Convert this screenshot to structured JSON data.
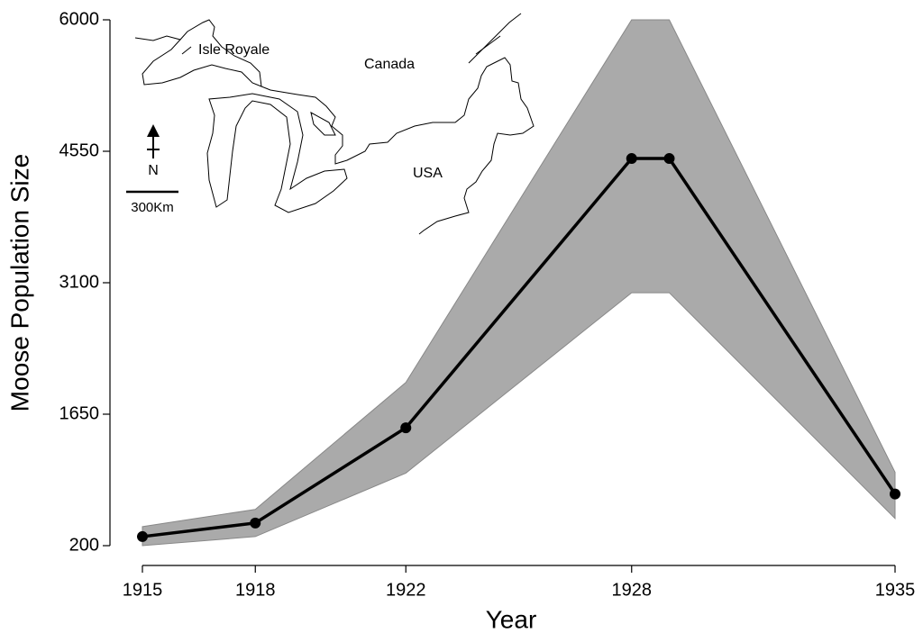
{
  "chart_data": {
    "type": "line",
    "x_label": "Year",
    "y_label": "Moose Population Size",
    "x": [
      1915,
      1918,
      1922,
      1928,
      1929,
      1935
    ],
    "series": [
      {
        "color": "#000000",
        "values": [
          300,
          450,
          1500,
          4470,
          4470,
          770
        ]
      }
    ],
    "band": {
      "color": "#aaaaaa",
      "upper": [
        410,
        600,
        2000,
        6000,
        6000,
        1010
      ],
      "lower": [
        200,
        300,
        1000,
        2990,
        2990,
        500
      ]
    },
    "xlim": [
      1915,
      1935
    ],
    "xticks": [
      1915,
      1918,
      1922,
      1928,
      1935
    ],
    "ylim": [
      200,
      6000
    ],
    "yticks": [
      200,
      1650,
      3100,
      4550,
      6000
    ],
    "annotations": [
      "Isle Royale",
      "Canada",
      "USA",
      "N",
      "300Km"
    ]
  }
}
